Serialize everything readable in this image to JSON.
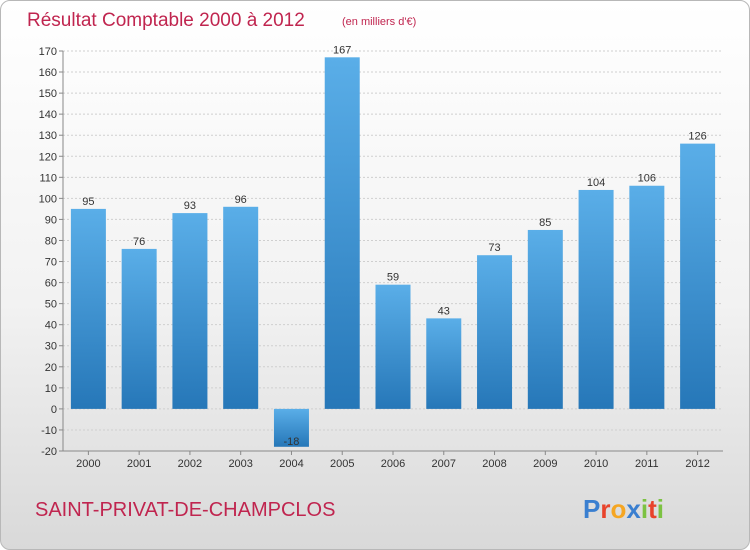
{
  "header": {
    "title": "Résultat Comptable 2000 à 2012",
    "unit": "(en milliers d'€)"
  },
  "footer": {
    "commune": "SAINT-PRIVAT-DE-CHAMPCLOS",
    "brand_letters": [
      "P",
      "r",
      "o",
      "x",
      "i",
      "t",
      "i"
    ],
    "brand_colors": [
      "#3a7fd0",
      "#e8432b",
      "#f5a623",
      "#3a7fd0",
      "#7cc242",
      "#e8432b",
      "#7cc242"
    ]
  },
  "colors": {
    "bar_top": "#5aaee8",
    "bar_bottom": "#2677b8",
    "grid": "#cfcfcf",
    "axis": "#888888",
    "accent": "#c0254f"
  },
  "chart_data": {
    "type": "bar",
    "title": "Résultat Comptable 2000 à 2012",
    "subtitle": "(en milliers d'€)",
    "categories": [
      "2000",
      "2001",
      "2002",
      "2003",
      "2004",
      "2005",
      "2006",
      "2007",
      "2008",
      "2009",
      "2010",
      "2011",
      "2012"
    ],
    "values": [
      95,
      76,
      93,
      96,
      -18,
      167,
      59,
      43,
      73,
      85,
      104,
      106,
      126
    ],
    "ylim": [
      -20,
      170
    ],
    "yticks": [
      -20,
      -10,
      0,
      10,
      20,
      30,
      40,
      50,
      60,
      70,
      80,
      90,
      100,
      110,
      120,
      130,
      140,
      150,
      160,
      170
    ],
    "grid": true,
    "legend": "none"
  }
}
